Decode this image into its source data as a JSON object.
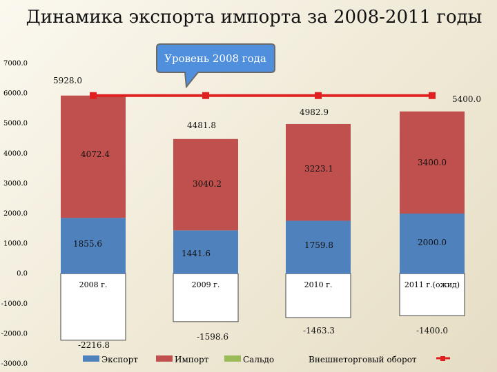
{
  "chart_data": {
    "type": "bar",
    "title": "Динамика экспорта импорта за 2008-2011 годы",
    "categories": [
      "2008 г.",
      "2009 г.",
      "2010 г.",
      "2011 г.(ожид)"
    ],
    "series": [
      {
        "name": "Экспорт",
        "values": [
          1855.6,
          1441.6,
          1759.8,
          2000.0
        ],
        "labels": [
          "1855.6",
          "1441.6",
          "1759.8",
          "2000.0"
        ],
        "color": "#4f81bd"
      },
      {
        "name": "Импорт",
        "values": [
          4072.4,
          3040.2,
          3223.1,
          3400.0
        ],
        "labels": [
          "4072.4",
          "3040.2",
          "3223.1",
          "3400.0"
        ],
        "color": "#c0504d"
      },
      {
        "name": "Сальдо",
        "values": [
          -2216.8,
          -1598.6,
          -1463.3,
          -1400.0
        ],
        "labels": [
          "-2216.8",
          "-1598.6",
          "-1463.3",
          "-1400.0"
        ],
        "color": "#9bbb59"
      }
    ],
    "turnover": {
      "name": "Внешнеторговый оборот",
      "values": [
        5928.0,
        4481.8,
        4982.9,
        5400.0
      ],
      "labels": [
        "5928.0",
        "4481.8",
        "4982.9",
        "5400.0"
      ]
    },
    "reference_line": {
      "value": 5928.0,
      "color": "#e02020"
    },
    "callout": "Уровень 2008 года",
    "yticks": [
      "7000.0",
      "6000.0",
      "5000.0",
      "4000.0",
      "3000.0",
      "2000.0",
      "1000.0",
      "0.0",
      "-1000.0",
      "-2000.0",
      "-3000.0"
    ],
    "ylim": [
      -3000,
      7000
    ],
    "grid": false,
    "legend_position": "bottom"
  }
}
